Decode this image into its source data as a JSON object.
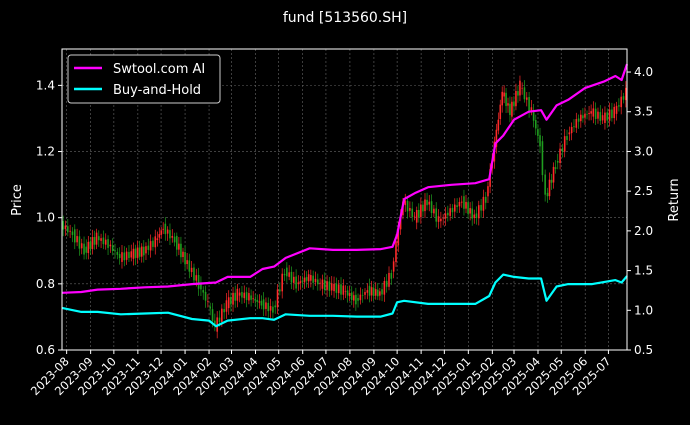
{
  "chart_data": {
    "type": "line",
    "title": "fund [513560.SH]",
    "xlabel": "",
    "ylabel_left": "Price",
    "ylabel_right": "Return",
    "xlim": [
      "2023-07-26",
      "2025-07-25"
    ],
    "ylim_left": [
      0.6,
      1.51
    ],
    "ylim_right": [
      0.5,
      4.29
    ],
    "x_ticks": [
      "2023-08",
      "2023-09",
      "2023-10",
      "2023-11",
      "2023-12",
      "2024-01",
      "2024-02",
      "2024-03",
      "2024-04",
      "2024-05",
      "2024-06",
      "2024-07",
      "2024-08",
      "2024-09",
      "2024-10",
      "2024-11",
      "2024-12",
      "2025-01",
      "2025-02",
      "2025-03",
      "2025-04",
      "2025-05",
      "2025-06",
      "2025-07"
    ],
    "y_ticks_left": [
      "0.6",
      "0.8",
      "1.0",
      "1.2",
      "1.4"
    ],
    "y_ticks_right": [
      "0.5",
      "1.0",
      "1.5",
      "2.0",
      "2.5",
      "3.0",
      "3.5",
      "4.0"
    ],
    "grid": true,
    "legend_position": "top-left",
    "colors": {
      "background": "#000000",
      "up": "#ff2a2a",
      "down": "#1f9e1f",
      "strategy": "#ff00ff",
      "benchmark": "#00ffff"
    },
    "price_candles": {
      "axis": "left",
      "dates": [
        "2023-07-26",
        "2023-08-10",
        "2023-08-25",
        "2023-09-10",
        "2023-09-25",
        "2023-10-10",
        "2023-10-25",
        "2023-11-10",
        "2023-11-25",
        "2023-12-05",
        "2023-12-20",
        "2024-01-05",
        "2024-01-20",
        "2024-02-01",
        "2024-02-10",
        "2024-02-25",
        "2024-03-10",
        "2024-03-25",
        "2024-04-10",
        "2024-04-25",
        "2024-05-10",
        "2024-05-25",
        "2024-06-10",
        "2024-06-25",
        "2024-07-10",
        "2024-07-25",
        "2024-08-10",
        "2024-08-25",
        "2024-09-10",
        "2024-09-25",
        "2024-10-01",
        "2024-10-10",
        "2024-10-25",
        "2024-11-10",
        "2024-11-25",
        "2024-12-10",
        "2024-12-25",
        "2025-01-10",
        "2025-01-25",
        "2025-02-05",
        "2025-02-15",
        "2025-02-25",
        "2025-03-10",
        "2025-03-25",
        "2025-04-05",
        "2025-04-12",
        "2025-04-25",
        "2025-05-10",
        "2025-05-25",
        "2025-06-10",
        "2025-06-25",
        "2025-07-10",
        "2025-07-25"
      ],
      "close": [
        0.98,
        0.95,
        0.9,
        0.94,
        0.92,
        0.88,
        0.89,
        0.9,
        0.93,
        0.97,
        0.93,
        0.86,
        0.8,
        0.74,
        0.67,
        0.74,
        0.77,
        0.76,
        0.74,
        0.72,
        0.84,
        0.8,
        0.82,
        0.8,
        0.79,
        0.78,
        0.75,
        0.78,
        0.77,
        0.83,
        0.92,
        1.05,
        1.0,
        1.05,
        0.99,
        1.02,
        1.05,
        1.0,
        1.06,
        1.22,
        1.38,
        1.32,
        1.4,
        1.32,
        1.22,
        1.06,
        1.16,
        1.25,
        1.3,
        1.32,
        1.3,
        1.32,
        1.38
      ]
    },
    "series": [
      {
        "name": "Swtool.com AI",
        "axis": "right",
        "dates": [
          "2023-07-26",
          "2023-08-20",
          "2023-09-10",
          "2023-10-10",
          "2023-11-10",
          "2023-12-10",
          "2024-01-10",
          "2024-02-10",
          "2024-02-25",
          "2024-03-25",
          "2024-04-10",
          "2024-04-25",
          "2024-05-10",
          "2024-06-10",
          "2024-07-10",
          "2024-08-10",
          "2024-09-10",
          "2024-09-25",
          "2024-10-01",
          "2024-10-10",
          "2024-10-25",
          "2024-11-10",
          "2024-12-10",
          "2025-01-10",
          "2025-01-28",
          "2025-02-05",
          "2025-02-15",
          "2025-03-01",
          "2025-03-20",
          "2025-04-05",
          "2025-04-12",
          "2025-04-25",
          "2025-05-10",
          "2025-06-01",
          "2025-06-25",
          "2025-07-10",
          "2025-07-18",
          "2025-07-25"
        ],
        "values": [
          1.22,
          1.23,
          1.26,
          1.27,
          1.29,
          1.3,
          1.33,
          1.35,
          1.42,
          1.42,
          1.52,
          1.55,
          1.66,
          1.78,
          1.76,
          1.76,
          1.77,
          1.8,
          1.95,
          2.4,
          2.48,
          2.55,
          2.58,
          2.6,
          2.65,
          3.1,
          3.2,
          3.4,
          3.5,
          3.52,
          3.4,
          3.58,
          3.65,
          3.8,
          3.88,
          3.95,
          3.9,
          4.1
        ]
      },
      {
        "name": "Buy-and-Hold",
        "axis": "right",
        "dates": [
          "2023-07-26",
          "2023-08-20",
          "2023-09-10",
          "2023-10-10",
          "2023-11-10",
          "2023-12-10",
          "2024-01-10",
          "2024-02-01",
          "2024-02-10",
          "2024-02-25",
          "2024-03-25",
          "2024-04-10",
          "2024-04-25",
          "2024-05-10",
          "2024-06-10",
          "2024-07-10",
          "2024-08-10",
          "2024-09-10",
          "2024-09-25",
          "2024-10-01",
          "2024-10-10",
          "2024-11-10",
          "2024-12-10",
          "2025-01-10",
          "2025-01-28",
          "2025-02-05",
          "2025-02-15",
          "2025-03-01",
          "2025-03-20",
          "2025-04-05",
          "2025-04-12",
          "2025-04-25",
          "2025-05-10",
          "2025-06-10",
          "2025-07-10",
          "2025-07-18",
          "2025-07-25"
        ],
        "values": [
          1.03,
          0.98,
          0.98,
          0.95,
          0.96,
          0.97,
          0.89,
          0.87,
          0.8,
          0.87,
          0.9,
          0.9,
          0.88,
          0.95,
          0.93,
          0.93,
          0.92,
          0.92,
          0.96,
          1.1,
          1.12,
          1.08,
          1.08,
          1.08,
          1.18,
          1.35,
          1.45,
          1.42,
          1.4,
          1.4,
          1.12,
          1.3,
          1.33,
          1.33,
          1.38,
          1.35,
          1.43
        ]
      }
    ]
  }
}
